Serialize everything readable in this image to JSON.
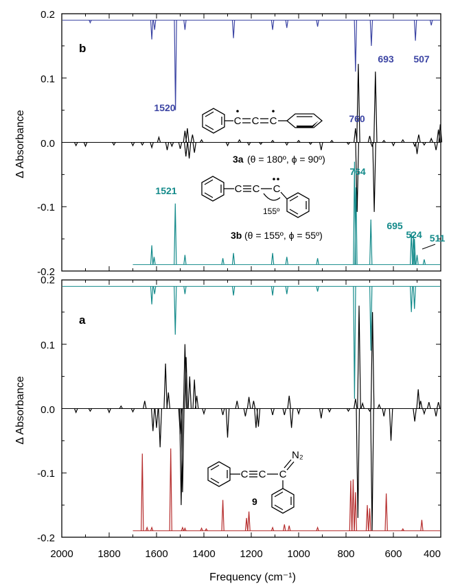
{
  "chart_data": {
    "type": "line",
    "xlabel": "Frequency (cm⁻¹)",
    "x_ticks": [
      "2000",
      "1800",
      "1600",
      "1400",
      "1200",
      "1000",
      "800",
      "600",
      "400"
    ],
    "xlim": [
      2000,
      400
    ],
    "x_reversed": true,
    "panels": [
      {
        "id": "b",
        "label": "b",
        "ylabel": "Δ Absorbance",
        "ylim": [
          -0.2,
          0.2
        ],
        "y_ticks": [
          "0.2",
          "0.1",
          "0.0",
          "-0.1",
          "-0.2"
        ],
        "traces": [
          {
            "role": "calc_inverted",
            "color": "#3b44a3",
            "baseline": 0.19,
            "sticks": [
              [
                1880,
                -0.004
              ],
              [
                1620,
                -0.03
              ],
              [
                1608,
                -0.015
              ],
              [
                1520,
                -0.14
              ],
              [
                1480,
                -0.015
              ],
              [
                1275,
                -0.028
              ],
              [
                1110,
                -0.015
              ],
              [
                1050,
                -0.012
              ],
              [
                920,
                -0.01
              ],
              [
                760,
                -0.08
              ],
              [
                693,
                -0.04
              ],
              [
                507,
                -0.032
              ],
              [
                440,
                -0.008
              ]
            ]
          },
          {
            "role": "experimental",
            "color": "#000000",
            "baseline": 0.0,
            "sticks": [
              [
                1940,
                -0.005
              ],
              [
                1900,
                -0.006
              ],
              [
                1780,
                -0.004
              ],
              [
                1700,
                -0.005
              ],
              [
                1660,
                -0.004
              ],
              [
                1620,
                -0.008
              ],
              [
                1590,
                0.008
              ],
              [
                1555,
                -0.012
              ],
              [
                1535,
                -0.006
              ],
              [
                1500,
                -0.01
              ],
              [
                1480,
                0.018
              ],
              [
                1476,
                -0.022
              ],
              [
                1470,
                0.022
              ],
              [
                1462,
                -0.025
              ],
              [
                1448,
                0.012
              ],
              [
                1440,
                -0.016
              ],
              [
                1410,
                0.004
              ],
              [
                1300,
                -0.005
              ],
              [
                1250,
                0.004
              ],
              [
                1210,
                -0.004
              ],
              [
                1160,
                -0.003
              ],
              [
                1110,
                0.003
              ],
              [
                1050,
                -0.004
              ],
              [
                1000,
                0.003
              ],
              [
                950,
                -0.003
              ],
              [
                905,
                -0.012
              ],
              [
                860,
                0.003
              ],
              [
                790,
                -0.003
              ],
              [
                760,
                0.022
              ],
              [
                753,
                -0.108
              ],
              [
                748,
                0.122
              ],
              [
                700,
                0.01
              ],
              [
                690,
                -0.006
              ],
              [
                681,
                -0.108
              ],
              [
                676,
                0.11
              ],
              [
                640,
                0.003
              ],
              [
                600,
                -0.005
              ],
              [
                560,
                0.004
              ],
              [
                510,
                -0.006
              ],
              [
                500,
                -0.018
              ],
              [
                493,
                0.012
              ],
              [
                470,
                -0.004
              ],
              [
                440,
                0.006
              ],
              [
                420,
                -0.012
              ],
              [
                410,
                0.02
              ],
              [
                402,
                0.028
              ]
            ]
          },
          {
            "role": "calc",
            "color": "#138a8a",
            "baseline": -0.19,
            "sticks": [
              [
                1620,
                0.03
              ],
              [
                1610,
                0.012
              ],
              [
                1521,
                0.095
              ],
              [
                1480,
                0.015
              ],
              [
                1320,
                0.01
              ],
              [
                1275,
                0.018
              ],
              [
                1110,
                0.018
              ],
              [
                1050,
                0.012
              ],
              [
                920,
                0.01
              ],
              [
                764,
                0.16
              ],
              [
                758,
                0.12
              ],
              [
                695,
                0.07
              ],
              [
                524,
                0.05
              ],
              [
                515,
                0.045
              ],
              [
                511,
                0.04
              ],
              [
                500,
                0.015
              ],
              [
                470,
                0.008
              ]
            ]
          }
        ],
        "annotations": {
          "b1520": "1520",
          "b760": "760",
          "b693": "693",
          "b507": "507",
          "t1521": "1521",
          "t764": "764",
          "t695": "695",
          "t524": "524",
          "t511": "511",
          "mol3a_label": "3a",
          "mol3a_params": "(θ = 180º, ϕ = 90º)",
          "mol3b_label": "3b",
          "mol3b_params": "(θ = 155º, ϕ = 55º)",
          "angle": "155º"
        }
      },
      {
        "id": "a",
        "label": "a",
        "ylabel": "Δ Absorbance",
        "ylim": [
          -0.2,
          0.2
        ],
        "y_ticks": [
          "0.2",
          "0.1",
          "0.0",
          "-0.1",
          "-0.2"
        ],
        "traces": [
          {
            "role": "calc_inverted",
            "color": "#138a8a",
            "baseline": 0.19,
            "sticks": [
              [
                1620,
                -0.028
              ],
              [
                1608,
                -0.012
              ],
              [
                1521,
                -0.075
              ],
              [
                1480,
                -0.012
              ],
              [
                1275,
                -0.014
              ],
              [
                1110,
                -0.014
              ],
              [
                1050,
                -0.012
              ],
              [
                920,
                -0.008
              ],
              [
                764,
                -0.175
              ],
              [
                695,
                -0.1
              ],
              [
                524,
                -0.04
              ],
              [
                511,
                -0.035
              ]
            ]
          },
          {
            "role": "experimental",
            "color": "#000000",
            "baseline": 0.0,
            "sticks": [
              [
                1940,
                -0.006
              ],
              [
                1880,
                -0.004
              ],
              [
                1800,
                -0.006
              ],
              [
                1750,
                0.004
              ],
              [
                1700,
                -0.005
              ],
              [
                1650,
                0.012
              ],
              [
                1615,
                -0.035
              ],
              [
                1600,
                -0.03
              ],
              [
                1585,
                -0.06
              ],
              [
                1562,
                0.07
              ],
              [
                1550,
                0.025
              ],
              [
                1500,
                -0.04
              ],
              [
                1496,
                -0.15
              ],
              [
                1490,
                -0.13
              ],
              [
                1480,
                0.1
              ],
              [
                1475,
                0.08
              ],
              [
                1460,
                0.05
              ],
              [
                1440,
                0.045
              ],
              [
                1430,
                0.02
              ],
              [
                1400,
                -0.008
              ],
              [
                1320,
                -0.01
              ],
              [
                1300,
                -0.045
              ],
              [
                1260,
                0.012
              ],
              [
                1225,
                -0.012
              ],
              [
                1210,
                0.018
              ],
              [
                1190,
                0.012
              ],
              [
                1180,
                -0.03
              ],
              [
                1170,
                -0.028
              ],
              [
                1110,
                -0.01
              ],
              [
                1060,
                -0.01
              ],
              [
                1040,
                0.02
              ],
              [
                1030,
                -0.03
              ],
              [
                1000,
                -0.008
              ],
              [
                905,
                -0.015
              ],
              [
                870,
                -0.005
              ],
              [
                790,
                -0.004
              ],
              [
                760,
                0.015
              ],
              [
                750,
                -0.17
              ],
              [
                745,
                0.16
              ],
              [
                730,
                0.008
              ],
              [
                700,
                -0.004
              ],
              [
                690,
                -0.19
              ],
              [
                688,
                0.15
              ],
              [
                660,
                0.006
              ],
              [
                640,
                -0.012
              ],
              [
                610,
                -0.05
              ],
              [
                510,
                -0.02
              ],
              [
                495,
                0.03
              ],
              [
                485,
                0.012
              ],
              [
                470,
                -0.008
              ],
              [
                450,
                0.01
              ],
              [
                420,
                -0.012
              ],
              [
                410,
                0.01
              ]
            ]
          },
          {
            "role": "calc",
            "color": "#b52b2b",
            "baseline": -0.19,
            "sticks": [
              [
                1660,
                0.12
              ],
              [
                1640,
                0.005
              ],
              [
                1620,
                0.005
              ],
              [
                1540,
                0.128
              ],
              [
                1490,
                0.005
              ],
              [
                1480,
                0.004
              ],
              [
                1410,
                0.004
              ],
              [
                1390,
                0.003
              ],
              [
                1320,
                0.048
              ],
              [
                1220,
                0.02
              ],
              [
                1210,
                0.03
              ],
              [
                1110,
                0.005
              ],
              [
                1060,
                0.01
              ],
              [
                1040,
                0.008
              ],
              [
                920,
                0.005
              ],
              [
                780,
                0.078
              ],
              [
                770,
                0.08
              ],
              [
                760,
                0.06
              ],
              [
                710,
                0.04
              ],
              [
                700,
                0.035
              ],
              [
                630,
                0.058
              ],
              [
                560,
                0.003
              ],
              [
                480,
                0.017
              ]
            ]
          }
        ],
        "annotations": {
          "mol9_label": "9",
          "n2": "N₂"
        }
      }
    ]
  }
}
